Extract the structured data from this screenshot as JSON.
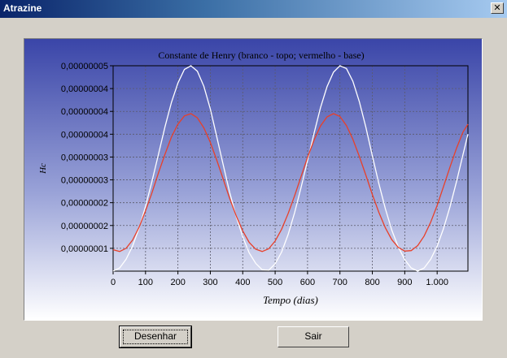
{
  "window": {
    "title": "Atrazine",
    "close_glyph": "✕",
    "title_gradient_start": "#0a246a",
    "title_gradient_end": "#a6caf0"
  },
  "buttons": {
    "draw_label": "Desenhar",
    "exit_label": "Sair"
  },
  "chart_data": {
    "type": "line",
    "title": "Constante de Henry (branco - topo; vermelho - base)",
    "xlabel": "Tempo (dias)",
    "ylabel": "Hc",
    "xlim": [
      0,
      1095
    ],
    "ylim": [
      5e-09,
      5e-08
    ],
    "x_ticks": [
      0,
      100,
      200,
      300,
      400,
      500,
      600,
      700,
      800,
      900,
      1000
    ],
    "x_tick_labels": [
      "0",
      "100",
      "200",
      "300",
      "400",
      "500",
      "600",
      "700",
      "800",
      "900",
      "1.000"
    ],
    "y_ticks": [
      1e-08,
      1.5e-08,
      2e-08,
      2.5e-08,
      3e-08,
      3.5e-08,
      4e-08,
      4.5e-08,
      5e-08
    ],
    "y_tick_labels": [
      "0,00000001",
      "0,00000002",
      "0,00000002",
      "0,00000003",
      "0,00000003",
      "0,00000004",
      "0,00000004",
      "0,00000004",
      "0,00000005"
    ],
    "grid": true,
    "series": [
      {
        "color": "#ffffff",
        "x": [
          0,
          20,
          40,
          60,
          80,
          100,
          120,
          140,
          160,
          180,
          200,
          220,
          240,
          260,
          280,
          300,
          320,
          340,
          360,
          380,
          400,
          420,
          440,
          460,
          480,
          500,
          520,
          540,
          560,
          580,
          600,
          620,
          640,
          660,
          680,
          700,
          720,
          740,
          760,
          780,
          800,
          820,
          840,
          860,
          880,
          900,
          920,
          940,
          960,
          980,
          1000,
          1020,
          1040,
          1060,
          1080,
          1095
        ],
        "y": [
          5e-09,
          5.7e-09,
          7.6e-09,
          1.05e-08,
          1.44e-08,
          1.92e-08,
          2.47e-08,
          3.06e-08,
          3.66e-08,
          4.2e-08,
          4.62e-08,
          4.92e-08,
          5e-08,
          4.88e-08,
          4.55e-08,
          4.05e-08,
          3.44e-08,
          2.82e-08,
          2.22e-08,
          1.69e-08,
          1.25e-08,
          9e-09,
          6.7e-09,
          5.3e-09,
          5.2e-09,
          6.6e-09,
          9.2e-09,
          1.3e-08,
          1.78e-08,
          2.33e-08,
          2.92e-08,
          3.52e-08,
          4.08e-08,
          4.54e-08,
          4.86e-08,
          5e-08,
          4.94e-08,
          4.66e-08,
          4.21e-08,
          3.65e-08,
          3.03e-08,
          2.42e-08,
          1.87e-08,
          1.4e-08,
          1.03e-08,
          7.5e-09,
          5.7e-09,
          5e-09,
          5.7e-09,
          7.6e-09,
          1.05e-08,
          1.44e-08,
          1.92e-08,
          2.47e-08,
          3.06e-08,
          3.5e-08
        ]
      },
      {
        "color": "#e8402a",
        "x": [
          0,
          20,
          40,
          60,
          80,
          100,
          120,
          140,
          160,
          180,
          200,
          220,
          240,
          260,
          280,
          300,
          320,
          340,
          360,
          380,
          400,
          420,
          440,
          460,
          480,
          500,
          520,
          540,
          560,
          580,
          600,
          620,
          640,
          660,
          680,
          700,
          720,
          740,
          760,
          780,
          800,
          820,
          840,
          860,
          880,
          900,
          920,
          940,
          960,
          980,
          1000,
          1020,
          1040,
          1060,
          1080,
          1095
        ],
        "y": [
          9.7e-09,
          9.3e-09,
          1e-08,
          1.18e-08,
          1.46e-08,
          1.82e-08,
          2.22e-08,
          2.65e-08,
          3.06e-08,
          3.44e-08,
          3.72e-08,
          3.9e-08,
          3.95e-08,
          3.86e-08,
          3.64e-08,
          3.32e-08,
          2.93e-08,
          2.51e-08,
          2.09e-08,
          1.71e-08,
          1.38e-08,
          1.13e-08,
          9.8e-09,
          9.3e-09,
          9.9e-09,
          1.16e-08,
          1.42e-08,
          1.76e-08,
          2.15e-08,
          2.57e-08,
          2.99e-08,
          3.37e-08,
          3.68e-08,
          3.88e-08,
          3.95e-08,
          3.89e-08,
          3.69e-08,
          3.39e-08,
          3.01e-08,
          2.6e-08,
          2.18e-08,
          1.79e-08,
          1.45e-08,
          1.19e-08,
          1.02e-08,
          9.4e-09,
          9.5e-09,
          1.06e-08,
          1.27e-08,
          1.57e-08,
          1.94e-08,
          2.36e-08,
          2.79e-08,
          3.2e-08,
          3.55e-08,
          3.72e-08
        ]
      }
    ]
  }
}
